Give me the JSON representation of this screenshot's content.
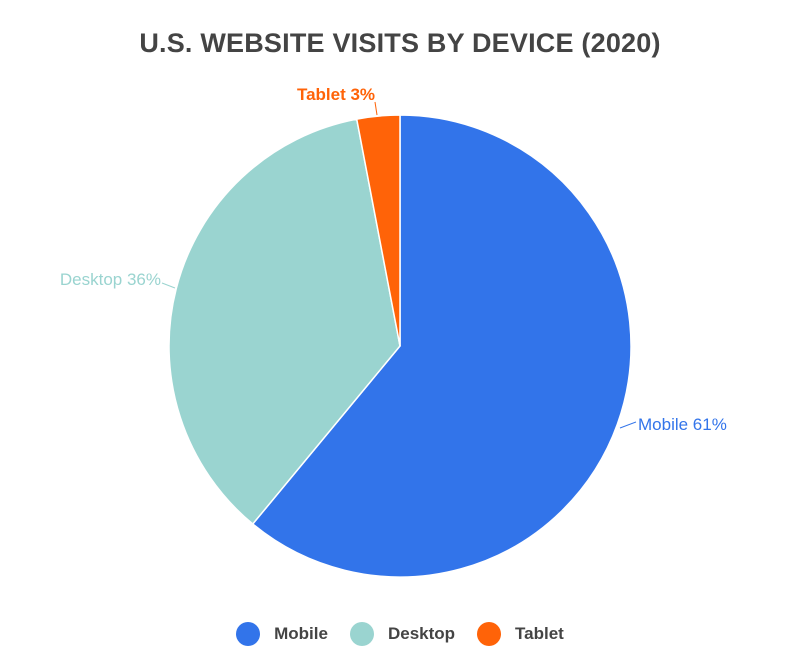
{
  "chart_data": {
    "type": "pie",
    "title": "U.S. WEBSITE VISITS BY DEVICE (2020)",
    "slices": [
      {
        "label": "Mobile",
        "value": 61,
        "data_label": "Mobile 61%",
        "color": "#3274EA"
      },
      {
        "label": "Desktop",
        "value": 36,
        "data_label": "Desktop 36%",
        "color": "#9AD4D0"
      },
      {
        "label": "Tablet",
        "value": 3,
        "data_label": "Tablet 3%",
        "color": "#FF6308"
      }
    ],
    "legend_position": "bottom",
    "legend": [
      "Mobile",
      "Desktop",
      "Tablet"
    ]
  }
}
